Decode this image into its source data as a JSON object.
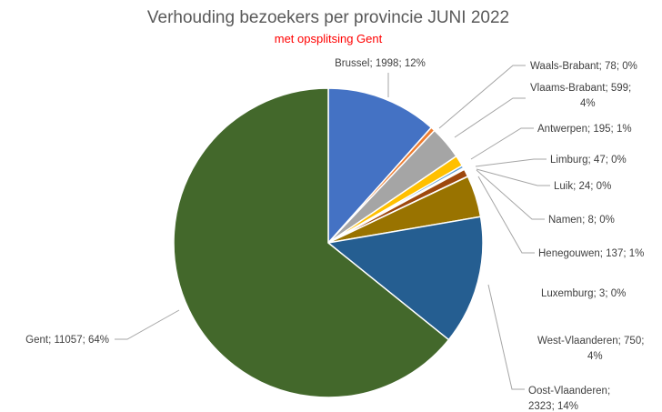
{
  "chart_data": {
    "type": "pie",
    "title": "Verhouding bezoekers per provincie JUNI 2022",
    "subtitle": "met opsplitsing Gent",
    "subtitle_color": "#ff0000",
    "legend": "none",
    "slices": [
      {
        "name": "Brussel",
        "value": 1998,
        "percent": "12%",
        "label_lines": [
          "Brussel; 1998; 12%"
        ],
        "color": "#4472c4"
      },
      {
        "name": "Waals-Brabant",
        "value": 78,
        "percent": "0%",
        "label_lines": [
          "Waals-Brabant; 78; 0%"
        ],
        "color": "#ed7d31"
      },
      {
        "name": "Vlaams-Brabant",
        "value": 599,
        "percent": "4%",
        "label_lines": [
          "Vlaams-Brabant; 599;",
          "4%"
        ],
        "color": "#a5a5a5"
      },
      {
        "name": "Antwerpen",
        "value": 195,
        "percent": "1%",
        "label_lines": [
          "Antwerpen; 195; 1%"
        ],
        "color": "#ffc000"
      },
      {
        "name": "Limburg",
        "value": 47,
        "percent": "0%",
        "label_lines": [
          "Limburg; 47; 0%"
        ],
        "color": "#5b9bd5"
      },
      {
        "name": "Luik",
        "value": 24,
        "percent": "0%",
        "label_lines": [
          "Luik; 24; 0%"
        ],
        "color": "#70ad47"
      },
      {
        "name": "Namen",
        "value": 8,
        "percent": "0%",
        "label_lines": [
          "Namen; 8; 0%"
        ],
        "color": "#264478"
      },
      {
        "name": "Henegouwen",
        "value": 137,
        "percent": "1%",
        "label_lines": [
          "Henegouwen; 137; 1%"
        ],
        "color": "#9e480e"
      },
      {
        "name": "Luxemburg",
        "value": 3,
        "percent": "0%",
        "label_lines": [
          "Luxemburg; 3; 0%"
        ],
        "color": "#636363"
      },
      {
        "name": "West-Vlaanderen",
        "value": 750,
        "percent": "4%",
        "label_lines": [
          "West-Vlaanderen; 750;",
          "4%"
        ],
        "color": "#997300"
      },
      {
        "name": "Oost-Vlaanderen",
        "value": 2323,
        "percent": "14%",
        "label_lines": [
          "Oost-Vlaanderen;",
          "2323; 14%"
        ],
        "color": "#255e91"
      },
      {
        "name": "Gent",
        "value": 11057,
        "percent": "64%",
        "label_lines": [
          "Gent; 11057; 64%"
        ],
        "color": "#43682b"
      }
    ]
  }
}
